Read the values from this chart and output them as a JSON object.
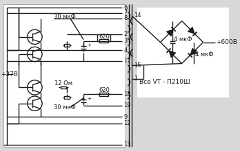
{
  "bg_color": "#d8d8d8",
  "circuit_bg": "#ffffff",
  "line_color": "#1a1a1a",
  "text_color": "#1a1a1a",
  "lw": 1.0,
  "figsize": [
    3.48,
    2.2
  ],
  "dpi": 100,
  "labels": {
    "input_voltage": "+27В",
    "output_voltage": "+600В",
    "cap_top": "30 мкФ",
    "cap_bot": "30 мкФ",
    "cap3": "4 мкФ",
    "cap4": "4 мкФ",
    "res1": "620",
    "res2": "620",
    "res3": "12 Ом",
    "transistors": "Все VT - П210Ш",
    "p6": "6",
    "p7": "7",
    "p8": "8",
    "p2": "2",
    "p3": "3",
    "p4": "4",
    "p17": "17",
    "p18": "18",
    "p19": "19",
    "p9": "9",
    "p12": "12",
    "p13": "13",
    "p14": "14",
    "p15": "15",
    "p1": "1"
  }
}
